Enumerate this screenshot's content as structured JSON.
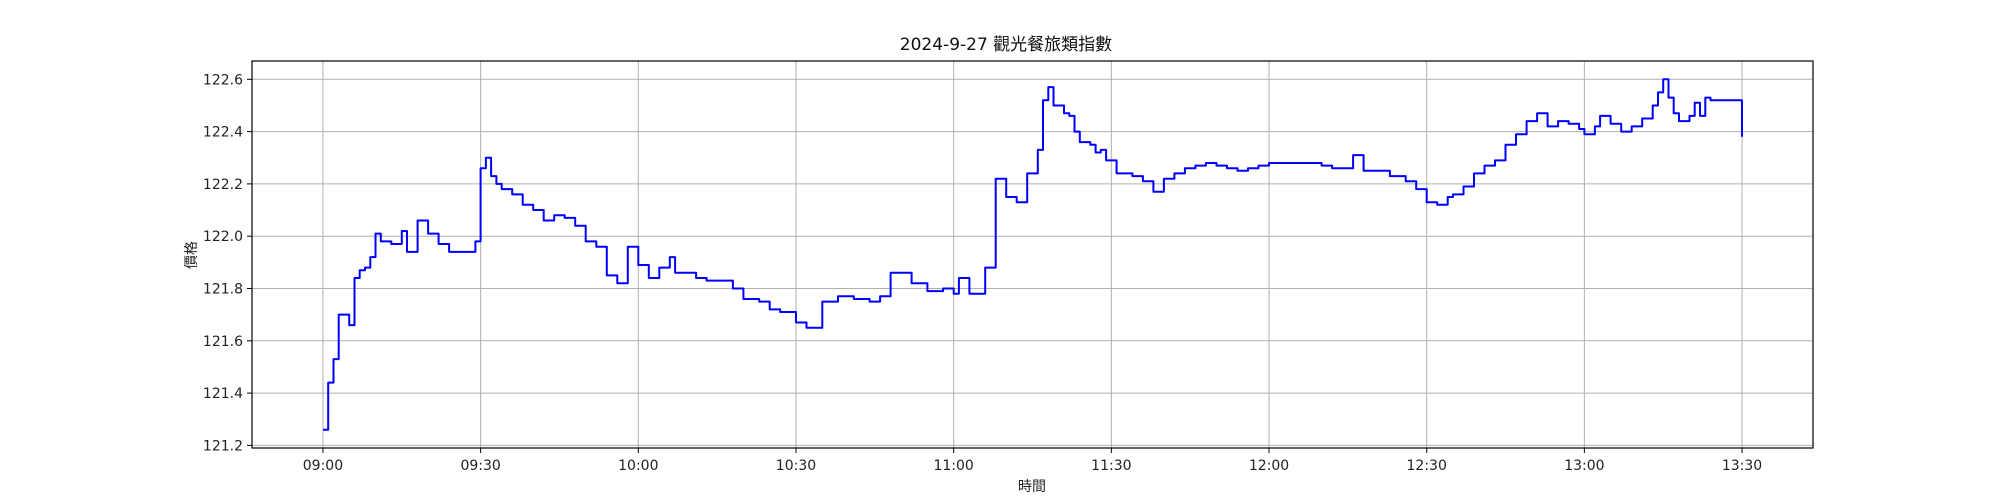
{
  "chart_data": {
    "type": "line",
    "title": "2024-9-27 觀光餐旅類指數",
    "xlabel": "時間",
    "ylabel": "價格",
    "x_ticks": [
      "09:00",
      "09:30",
      "10:00",
      "10:30",
      "11:00",
      "11:30",
      "12:00",
      "12:30",
      "13:00",
      "13:30"
    ],
    "y_ticks": [
      "121.2",
      "121.4",
      "121.6",
      "121.8",
      "122.0",
      "122.2",
      "122.4",
      "122.6"
    ],
    "ylim": [
      121.19,
      122.67
    ],
    "xlim_minutes_from_0900": [
      -13.5,
      283.5
    ],
    "grid": true,
    "line_color": "#0000ff",
    "series": [
      {
        "x": [
          "09:00",
          "09:01",
          "09:02",
          "09:03",
          "09:05",
          "09:06",
          "09:07",
          "09:08",
          "09:09",
          "09:10",
          "09:11",
          "09:13",
          "09:15",
          "09:16",
          "09:18",
          "09:20",
          "09:22",
          "09:24",
          "09:27",
          "09:29",
          "09:30",
          "09:31",
          "09:32",
          "09:33",
          "09:34",
          "09:36",
          "09:38",
          "09:40",
          "09:42",
          "09:44",
          "09:46",
          "09:48",
          "09:50",
          "09:52",
          "09:54",
          "09:56",
          "09:58",
          "10:00",
          "10:02",
          "10:04",
          "10:06",
          "10:07",
          "10:09",
          "10:11",
          "10:13",
          "10:16",
          "10:18",
          "10:20",
          "10:23",
          "10:25",
          "10:27",
          "10:30",
          "10:32",
          "10:35",
          "10:38",
          "10:41",
          "10:44",
          "10:46",
          "10:48",
          "10:52",
          "10:55",
          "10:58",
          "11:00",
          "11:01",
          "11:03",
          "11:06",
          "11:08",
          "11:10",
          "11:12",
          "11:14",
          "11:16",
          "11:17",
          "11:18",
          "11:19",
          "11:21",
          "11:22",
          "11:23",
          "11:24",
          "11:26",
          "11:27",
          "11:28",
          "11:29",
          "11:31",
          "11:34",
          "11:36",
          "11:38",
          "11:40",
          "11:42",
          "11:44",
          "11:46",
          "11:48",
          "11:50",
          "11:52",
          "11:54",
          "11:56",
          "11:58",
          "12:00",
          "12:03",
          "12:06",
          "12:08",
          "12:10",
          "12:12",
          "12:14",
          "12:16",
          "12:18",
          "12:20",
          "12:23",
          "12:26",
          "12:28",
          "12:30",
          "12:32",
          "12:34",
          "12:35",
          "12:37",
          "12:39",
          "12:41",
          "12:43",
          "12:45",
          "12:47",
          "12:49",
          "12:51",
          "12:53",
          "12:55",
          "12:57",
          "12:59",
          "13:00",
          "13:02",
          "13:03",
          "13:05",
          "13:07",
          "13:09",
          "13:11",
          "13:13",
          "13:14",
          "13:15",
          "13:16",
          "13:17",
          "13:18",
          "13:20",
          "13:21",
          "13:22",
          "13:23",
          "13:24",
          "13:25",
          "13:27",
          "13:29",
          "13:30"
        ],
        "y": [
          121.26,
          121.44,
          121.53,
          121.7,
          121.66,
          121.84,
          121.87,
          121.88,
          121.92,
          122.01,
          121.98,
          121.97,
          122.02,
          121.94,
          122.06,
          122.01,
          121.97,
          121.94,
          121.94,
          121.98,
          122.26,
          122.3,
          122.23,
          122.2,
          122.18,
          122.16,
          122.12,
          122.1,
          122.06,
          122.08,
          122.07,
          122.04,
          121.98,
          121.96,
          121.85,
          121.82,
          121.96,
          121.89,
          121.84,
          121.88,
          121.92,
          121.86,
          121.86,
          121.84,
          121.83,
          121.83,
          121.8,
          121.76,
          121.75,
          121.72,
          121.71,
          121.67,
          121.65,
          121.75,
          121.77,
          121.76,
          121.75,
          121.77,
          121.86,
          121.82,
          121.79,
          121.8,
          121.78,
          121.84,
          121.78,
          121.88,
          122.22,
          122.15,
          122.13,
          122.24,
          122.33,
          122.52,
          122.57,
          122.5,
          122.47,
          122.46,
          122.4,
          122.36,
          122.35,
          122.32,
          122.33,
          122.29,
          122.24,
          122.23,
          122.21,
          122.17,
          122.22,
          122.24,
          122.26,
          122.27,
          122.28,
          122.27,
          122.26,
          122.25,
          122.26,
          122.27,
          122.28,
          122.28,
          122.28,
          122.28,
          122.27,
          122.26,
          122.26,
          122.31,
          122.25,
          122.25,
          122.23,
          122.21,
          122.18,
          122.13,
          122.12,
          122.15,
          122.16,
          122.19,
          122.24,
          122.27,
          122.29,
          122.35,
          122.39,
          122.44,
          122.47,
          122.42,
          122.44,
          122.43,
          122.41,
          122.39,
          122.42,
          122.46,
          122.43,
          122.4,
          122.42,
          122.45,
          122.5,
          122.55,
          122.6,
          122.53,
          122.47,
          122.44,
          122.46,
          122.51,
          122.46,
          122.53,
          122.52,
          122.52,
          122.52,
          122.52,
          122.38
        ]
      }
    ]
  }
}
